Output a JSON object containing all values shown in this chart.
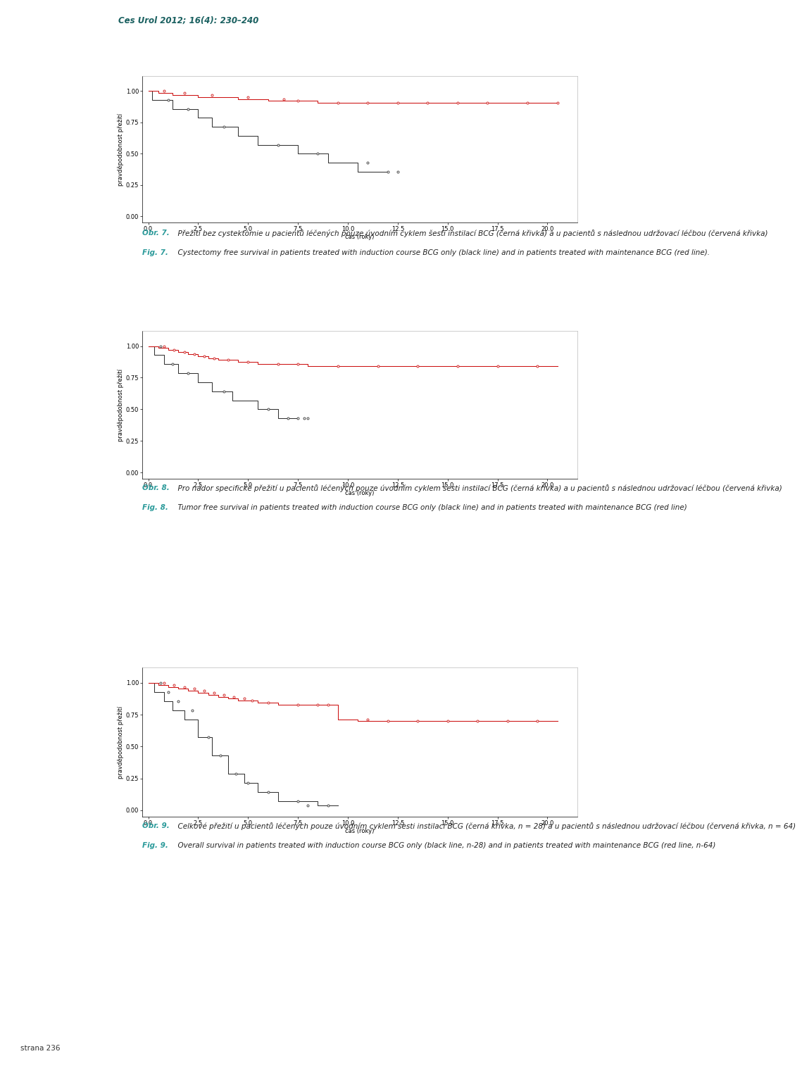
{
  "page_bg": "#ffffff",
  "header_bg": "#9ecfcf",
  "header_text": "Ces Urol 2012; 16(4): 230–240",
  "header_text_color": "#1a6060",
  "left_bar_color": "#7dc4cc",
  "fig7": {
    "ylabel": "pravděpodobnost přežití",
    "xlabel": "čas (roky)",
    "ytick_labels": [
      "0.00",
      "0.25",
      "0.50",
      "0.75",
      "1.00"
    ],
    "yticks": [
      0.0,
      0.25,
      0.5,
      0.75,
      1.0
    ],
    "xticks": [
      0.0,
      2.5,
      5.0,
      7.5,
      10.0,
      12.5,
      15.0,
      17.5,
      20.0
    ],
    "xtick_labels": [
      "0.0",
      "2.5",
      "5.0",
      "7.5",
      "10.0",
      "12.5",
      "15.0",
      "17.5",
      "20.0"
    ],
    "ylim": [
      -0.05,
      1.12
    ],
    "xlim": [
      -0.3,
      21.5
    ],
    "black_steps": [
      [
        0,
        1.0
      ],
      [
        0.2,
        1.0
      ],
      [
        0.2,
        0.929
      ],
      [
        1.2,
        0.929
      ],
      [
        1.2,
        0.857
      ],
      [
        2.5,
        0.857
      ],
      [
        2.5,
        0.786
      ],
      [
        3.2,
        0.786
      ],
      [
        3.2,
        0.714
      ],
      [
        4.5,
        0.714
      ],
      [
        4.5,
        0.643
      ],
      [
        5.5,
        0.643
      ],
      [
        5.5,
        0.571
      ],
      [
        7.5,
        0.571
      ],
      [
        7.5,
        0.5
      ],
      [
        9.0,
        0.5
      ],
      [
        9.0,
        0.429
      ],
      [
        10.5,
        0.429
      ],
      [
        10.5,
        0.357
      ],
      [
        12.0,
        0.357
      ]
    ],
    "black_censors": [
      [
        1.0,
        0.929
      ],
      [
        2.0,
        0.857
      ],
      [
        3.8,
        0.714
      ],
      [
        6.5,
        0.571
      ],
      [
        8.5,
        0.5
      ],
      [
        11.0,
        0.429
      ],
      [
        12.0,
        0.357
      ],
      [
        12.5,
        0.357
      ]
    ],
    "red_steps": [
      [
        0,
        1.0
      ],
      [
        0.5,
        1.0
      ],
      [
        0.5,
        0.984
      ],
      [
        1.2,
        0.984
      ],
      [
        1.2,
        0.968
      ],
      [
        2.5,
        0.968
      ],
      [
        2.5,
        0.952
      ],
      [
        4.5,
        0.952
      ],
      [
        4.5,
        0.937
      ],
      [
        6.0,
        0.937
      ],
      [
        6.0,
        0.921
      ],
      [
        8.5,
        0.921
      ],
      [
        8.5,
        0.905
      ],
      [
        20.5,
        0.905
      ]
    ],
    "red_censors": [
      [
        0.8,
        1.0
      ],
      [
        1.8,
        0.984
      ],
      [
        3.2,
        0.968
      ],
      [
        5.0,
        0.952
      ],
      [
        6.8,
        0.937
      ],
      [
        7.5,
        0.921
      ],
      [
        9.5,
        0.905
      ],
      [
        11.0,
        0.905
      ],
      [
        12.5,
        0.905
      ],
      [
        14.0,
        0.905
      ],
      [
        15.5,
        0.905
      ],
      [
        17.0,
        0.905
      ],
      [
        19.0,
        0.905
      ],
      [
        20.5,
        0.905
      ]
    ]
  },
  "fig8": {
    "ylabel": "pravděpodobnost přežití",
    "xlabel": "čas (roky)",
    "ytick_labels": [
      "0.00",
      "0.25",
      "0.50",
      "0.75",
      "1.00"
    ],
    "yticks": [
      0.0,
      0.25,
      0.5,
      0.75,
      1.0
    ],
    "xticks": [
      0.0,
      2.5,
      5.0,
      7.5,
      10.0,
      12.5,
      15.0,
      17.5,
      20.0
    ],
    "xtick_labels": [
      "0.0",
      "2.5",
      "5.0",
      "7.5",
      "10.0",
      "12.5",
      "15.0",
      "17.5",
      "20.0"
    ],
    "ylim": [
      -0.05,
      1.12
    ],
    "xlim": [
      -0.3,
      21.5
    ],
    "black_steps": [
      [
        0,
        1.0
      ],
      [
        0.3,
        1.0
      ],
      [
        0.3,
        0.929
      ],
      [
        0.8,
        0.929
      ],
      [
        0.8,
        0.857
      ],
      [
        1.5,
        0.857
      ],
      [
        1.5,
        0.786
      ],
      [
        2.5,
        0.786
      ],
      [
        2.5,
        0.714
      ],
      [
        3.2,
        0.714
      ],
      [
        3.2,
        0.643
      ],
      [
        4.2,
        0.643
      ],
      [
        4.2,
        0.571
      ],
      [
        5.5,
        0.571
      ],
      [
        5.5,
        0.5
      ],
      [
        6.5,
        0.5
      ],
      [
        6.5,
        0.429
      ],
      [
        7.5,
        0.429
      ]
    ],
    "black_censors": [
      [
        0.6,
        1.0
      ],
      [
        1.2,
        0.857
      ],
      [
        2.0,
        0.786
      ],
      [
        3.8,
        0.643
      ],
      [
        6.0,
        0.5
      ],
      [
        7.0,
        0.429
      ],
      [
        7.5,
        0.429
      ],
      [
        7.8,
        0.429
      ],
      [
        8.0,
        0.429
      ]
    ],
    "red_steps": [
      [
        0,
        1.0
      ],
      [
        0.5,
        1.0
      ],
      [
        0.5,
        0.984
      ],
      [
        1.0,
        0.984
      ],
      [
        1.0,
        0.968
      ],
      [
        1.5,
        0.968
      ],
      [
        1.5,
        0.952
      ],
      [
        2.0,
        0.952
      ],
      [
        2.0,
        0.937
      ],
      [
        2.5,
        0.937
      ],
      [
        2.5,
        0.921
      ],
      [
        3.0,
        0.921
      ],
      [
        3.0,
        0.905
      ],
      [
        3.5,
        0.905
      ],
      [
        3.5,
        0.889
      ],
      [
        4.5,
        0.889
      ],
      [
        4.5,
        0.873
      ],
      [
        5.5,
        0.873
      ],
      [
        5.5,
        0.857
      ],
      [
        8.0,
        0.857
      ],
      [
        8.0,
        0.841
      ],
      [
        20.5,
        0.841
      ]
    ],
    "red_censors": [
      [
        0.8,
        1.0
      ],
      [
        1.3,
        0.968
      ],
      [
        1.8,
        0.952
      ],
      [
        2.3,
        0.937
      ],
      [
        2.8,
        0.921
      ],
      [
        3.3,
        0.905
      ],
      [
        4.0,
        0.889
      ],
      [
        5.0,
        0.873
      ],
      [
        6.5,
        0.857
      ],
      [
        7.5,
        0.857
      ],
      [
        9.5,
        0.841
      ],
      [
        11.5,
        0.841
      ],
      [
        13.5,
        0.841
      ],
      [
        15.5,
        0.841
      ],
      [
        17.5,
        0.841
      ],
      [
        19.5,
        0.841
      ]
    ]
  },
  "fig9": {
    "ylabel": "pravděpodobnost přežití",
    "xlabel": "čas (roky)",
    "ytick_labels": [
      "0.00",
      "0.25",
      "0.50",
      "0.75",
      "1.00"
    ],
    "yticks": [
      0.0,
      0.25,
      0.5,
      0.75,
      1.0
    ],
    "xticks": [
      0.0,
      2.5,
      5.0,
      7.5,
      10.0,
      12.5,
      15.0,
      17.5,
      20.0
    ],
    "xtick_labels": [
      "0.0",
      "2.5",
      "5.0",
      "7.5",
      "10.0",
      "12.5",
      "15.0",
      "17.5",
      "20.0"
    ],
    "ylim": [
      -0.05,
      1.12
    ],
    "xlim": [
      -0.3,
      21.5
    ],
    "black_steps": [
      [
        0,
        1.0
      ],
      [
        0.3,
        1.0
      ],
      [
        0.3,
        0.929
      ],
      [
        0.8,
        0.929
      ],
      [
        0.8,
        0.857
      ],
      [
        1.2,
        0.857
      ],
      [
        1.2,
        0.786
      ],
      [
        1.8,
        0.786
      ],
      [
        1.8,
        0.714
      ],
      [
        2.5,
        0.714
      ],
      [
        2.5,
        0.571
      ],
      [
        3.2,
        0.571
      ],
      [
        3.2,
        0.429
      ],
      [
        4.0,
        0.429
      ],
      [
        4.0,
        0.286
      ],
      [
        4.8,
        0.286
      ],
      [
        4.8,
        0.214
      ],
      [
        5.5,
        0.214
      ],
      [
        5.5,
        0.143
      ],
      [
        6.5,
        0.143
      ],
      [
        6.5,
        0.071
      ],
      [
        8.5,
        0.071
      ],
      [
        8.5,
        0.036
      ],
      [
        9.5,
        0.036
      ]
    ],
    "black_censors": [
      [
        0.6,
        1.0
      ],
      [
        1.0,
        0.929
      ],
      [
        1.5,
        0.857
      ],
      [
        2.2,
        0.786
      ],
      [
        3.0,
        0.571
      ],
      [
        3.6,
        0.429
      ],
      [
        4.4,
        0.286
      ],
      [
        5.0,
        0.214
      ],
      [
        6.0,
        0.143
      ],
      [
        7.5,
        0.071
      ],
      [
        8.0,
        0.036
      ],
      [
        9.0,
        0.036
      ]
    ],
    "red_steps": [
      [
        0,
        1.0
      ],
      [
        0.5,
        1.0
      ],
      [
        0.5,
        0.984
      ],
      [
        1.0,
        0.984
      ],
      [
        1.0,
        0.968
      ],
      [
        1.5,
        0.968
      ],
      [
        1.5,
        0.952
      ],
      [
        2.0,
        0.952
      ],
      [
        2.0,
        0.937
      ],
      [
        2.5,
        0.937
      ],
      [
        2.5,
        0.921
      ],
      [
        3.0,
        0.921
      ],
      [
        3.0,
        0.905
      ],
      [
        3.5,
        0.905
      ],
      [
        3.5,
        0.889
      ],
      [
        4.0,
        0.889
      ],
      [
        4.0,
        0.875
      ],
      [
        4.5,
        0.875
      ],
      [
        4.5,
        0.859
      ],
      [
        5.5,
        0.859
      ],
      [
        5.5,
        0.843
      ],
      [
        6.5,
        0.843
      ],
      [
        6.5,
        0.827
      ],
      [
        9.5,
        0.827
      ],
      [
        9.5,
        0.714
      ],
      [
        10.5,
        0.714
      ],
      [
        10.5,
        0.698
      ],
      [
        20.5,
        0.698
      ]
    ],
    "red_censors": [
      [
        0.8,
        1.0
      ],
      [
        1.3,
        0.984
      ],
      [
        1.8,
        0.968
      ],
      [
        2.3,
        0.952
      ],
      [
        2.8,
        0.937
      ],
      [
        3.3,
        0.921
      ],
      [
        3.8,
        0.905
      ],
      [
        4.3,
        0.889
      ],
      [
        4.8,
        0.875
      ],
      [
        5.2,
        0.859
      ],
      [
        6.0,
        0.843
      ],
      [
        7.5,
        0.827
      ],
      [
        8.5,
        0.827
      ],
      [
        9.0,
        0.827
      ],
      [
        11.0,
        0.714
      ],
      [
        12.0,
        0.698
      ],
      [
        13.5,
        0.698
      ],
      [
        15.0,
        0.698
      ],
      [
        16.5,
        0.698
      ],
      [
        18.0,
        0.698
      ],
      [
        19.5,
        0.698
      ]
    ]
  },
  "teal_color": "#2b9a9a",
  "axis_fontsize": 6,
  "tick_fontsize": 6,
  "ylabel_fontsize": 6,
  "strana_text": "strana 236",
  "strana_fontsize": 7.5,
  "caption7_cz_bold": "Obr. 7.",
  "caption7_cz": "Přežití bez cystektomie u pacientů léčených pouze úvodním cyklem šesti instilací BCG (černá křivka) a u pacientů s následnou udržovací léčbou (červená křivka)",
  "caption7_en_bold": "Fig. 7.",
  "caption7_en": "Cystectomy free survival in patients treated with induction course BCG only (black line) and in patients treated with maintenance BCG (red line).",
  "caption8_cz_bold": "Obr. 8.",
  "caption8_cz": "Pro nádor specifické přežití u pacientů léčených pouze úvodním cyklem šesti instilací BCG (černá křivka) a u pacientů s následnou udržovací léčbou (červená křivka)",
  "caption8_en_bold": "Fig. 8.",
  "caption8_en": "Tumor free survival in patients treated with induction course BCG only (black line) and in patients treated with maintenance BCG (red line)",
  "caption9_cz_bold": "Obr. 9.",
  "caption9_cz": "Celkové přežití u pacientů léčených pouze úvodním cyklem šesti instilací BCG (černá křivka, n = 28) a u pacientů s následnou udržovací léčbou (červená křivka, n = 64)",
  "caption9_en_bold": "Fig. 9.",
  "caption9_en": "Overall survival in patients treated with induction course BCG only (black line, n-28) and in patients treated with maintenance BCG (red line, n-64)"
}
